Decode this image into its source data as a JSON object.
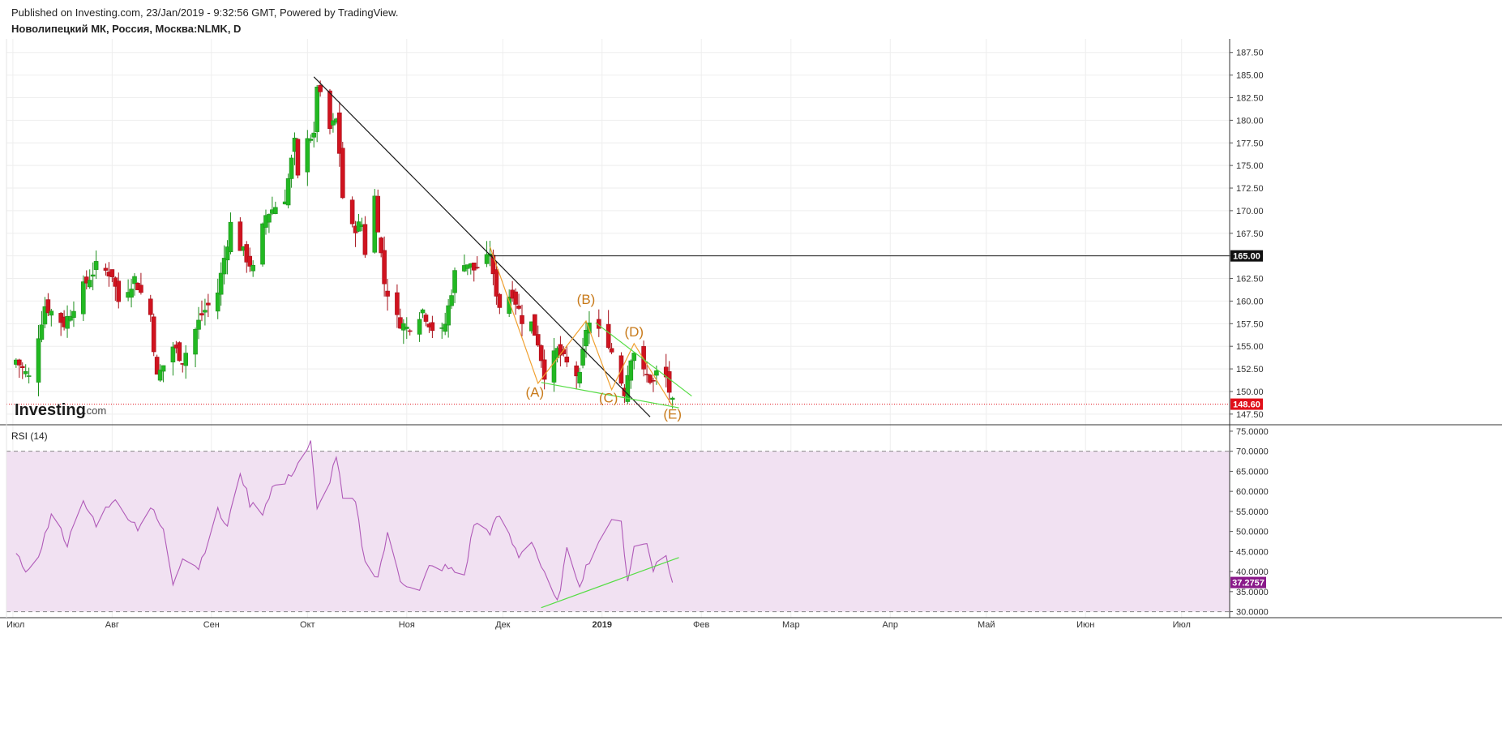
{
  "header": {
    "published": "Published on Investing.com, 23/Jan/2019 - 9:32:56 GMT, Powered by TradingView.",
    "instrument": "Новолипецкий МК, Россия, Москва:NLMK, D"
  },
  "logo": {
    "main": "Investing",
    "domain": ".com"
  },
  "colors": {
    "up": "#22b922",
    "down": "#d0131f",
    "trend": "#1a1a1a",
    "wave": "#f0a030",
    "channel": "#55dd44",
    "rsi_line": "#b05ab8",
    "rsi_band": "#f1e1f2",
    "price_tag": "#e0101a",
    "rsi_tag": "#8a1a8a"
  },
  "chart_data": [
    {
      "type": "candlestick",
      "title": "Новолипецкий МК, Россия, Москва:NLMK, D",
      "x_labels": [
        "Июл",
        "Авг",
        "Сен",
        "Окт",
        "Ноя",
        "Дек",
        "2019",
        "Фев",
        "Мар",
        "Апр",
        "Май",
        "Июн",
        "Июл"
      ],
      "ylim": [
        146.5,
        189
      ],
      "y_ticks": [
        "147.50",
        "150.00",
        "152.50",
        "155.00",
        "157.50",
        "160.00",
        "162.50",
        "165.00",
        "167.50",
        "170.00",
        "172.50",
        "175.00",
        "177.50",
        "180.00",
        "182.50",
        "185.00",
        "187.50"
      ],
      "last_price": "148.60",
      "level": "165.00",
      "close_anchors": [
        {
          "d": "2018-07-02",
          "c": 153.5
        },
        {
          "d": "2018-07-06",
          "c": 151.5
        },
        {
          "d": "2018-07-11",
          "c": 159.5
        },
        {
          "d": "2018-07-17",
          "c": 157.5
        },
        {
          "d": "2018-07-23",
          "c": 161.5
        },
        {
          "d": "2018-07-27",
          "c": 163.8
        },
        {
          "d": "2018-08-01",
          "c": 163.0
        },
        {
          "d": "2018-08-03",
          "c": 160.0
        },
        {
          "d": "2018-08-08",
          "c": 162.5
        },
        {
          "d": "2018-08-13",
          "c": 158.5
        },
        {
          "d": "2018-08-15",
          "c": 151.5
        },
        {
          "d": "2018-08-20",
          "c": 155.0
        },
        {
          "d": "2018-08-23",
          "c": 153.5
        },
        {
          "d": "2018-08-29",
          "c": 158.5
        },
        {
          "d": "2018-09-03",
          "c": 161.0
        },
        {
          "d": "2018-09-07",
          "c": 168.5
        },
        {
          "d": "2018-09-10",
          "c": 166.0
        },
        {
          "d": "2018-09-14",
          "c": 163.5
        },
        {
          "d": "2018-09-18",
          "c": 169.5
        },
        {
          "d": "2018-09-24",
          "c": 171.5
        },
        {
          "d": "2018-09-27",
          "c": 177.5
        },
        {
          "d": "2018-09-28",
          "c": 173.5
        },
        {
          "d": "2018-10-01",
          "c": 178.5
        },
        {
          "d": "2018-10-03",
          "c": 178.0
        },
        {
          "d": "2018-10-04",
          "c": 184.0
        },
        {
          "d": "2018-10-05",
          "c": 182.5
        },
        {
          "d": "2018-10-08",
          "c": 179.0
        },
        {
          "d": "2018-10-10",
          "c": 180.0
        },
        {
          "d": "2018-10-11",
          "c": 176.5
        },
        {
          "d": "2018-10-12",
          "c": 171.5
        },
        {
          "d": "2018-10-15",
          "c": 168.0
        },
        {
          "d": "2018-10-18",
          "c": 168.5
        },
        {
          "d": "2018-10-19",
          "c": 165.5
        },
        {
          "d": "2018-10-22",
          "c": 171.5
        },
        {
          "d": "2018-10-25",
          "c": 162.0
        },
        {
          "d": "2018-10-29",
          "c": 158.0
        },
        {
          "d": "2018-11-01",
          "c": 157.0
        },
        {
          "d": "2018-11-06",
          "c": 159.0
        },
        {
          "d": "2018-11-09",
          "c": 157.0
        },
        {
          "d": "2018-11-12",
          "c": 156.5
        },
        {
          "d": "2018-11-13",
          "c": 157.5
        },
        {
          "d": "2018-11-16",
          "c": 163.0
        },
        {
          "d": "2018-11-19",
          "c": 164.5
        },
        {
          "d": "2018-11-22",
          "c": 163.5
        },
        {
          "d": "2018-11-26",
          "c": 164.5
        },
        {
          "d": "2018-11-27",
          "c": 165.5
        },
        {
          "d": "2018-11-28",
          "c": 162.5
        },
        {
          "d": "2018-11-30",
          "c": 159.5
        },
        {
          "d": "2018-12-04",
          "c": 161.0
        },
        {
          "d": "2018-12-07",
          "c": 158.0
        },
        {
          "d": "2018-12-10",
          "c": 157.5
        },
        {
          "d": "2018-12-12",
          "c": 155.5
        },
        {
          "d": "2018-12-14",
          "c": 152.0
        },
        {
          "d": "2018-12-18",
          "c": 154.5
        },
        {
          "d": "2018-12-21",
          "c": 153.0
        },
        {
          "d": "2018-12-25",
          "c": 151.5
        },
        {
          "d": "2018-12-27",
          "c": 157.0
        },
        {
          "d": "2018-12-28",
          "c": 157.5
        },
        {
          "d": "2019-01-03",
          "c": 155.5
        },
        {
          "d": "2019-01-08",
          "c": 150.0
        },
        {
          "d": "2019-01-10",
          "c": 154.0
        },
        {
          "d": "2019-01-11",
          "c": 154.5
        },
        {
          "d": "2019-01-14",
          "c": 152.0
        },
        {
          "d": "2019-01-17",
          "c": 151.0
        },
        {
          "d": "2019-01-18",
          "c": 152.0
        },
        {
          "d": "2019-01-21",
          "c": 151.5
        },
        {
          "d": "2019-01-23",
          "c": 148.6
        }
      ],
      "wave_labels": [
        {
          "label": "(A)",
          "d": "2018-12-11",
          "y": 149.4
        },
        {
          "label": "(B)",
          "d": "2018-12-27",
          "y": 159.7
        },
        {
          "label": "(C)",
          "d": "2019-01-03",
          "y": 148.8
        },
        {
          "label": "(D)",
          "d": "2019-01-11",
          "y": 156.1
        },
        {
          "label": "(E)",
          "d": "2019-01-23",
          "y": 147.0
        }
      ],
      "trendline": [
        {
          "d": "2018-10-03",
          "y": 184.8
        },
        {
          "d": "2019-01-16",
          "y": 147.2
        }
      ],
      "wave_path": [
        {
          "d": "2018-11-27",
          "y": 166.0
        },
        {
          "d": "2018-12-12",
          "y": 150.9
        },
        {
          "d": "2018-12-27",
          "y": 157.8
        },
        {
          "d": "2019-01-04",
          "y": 150.2
        },
        {
          "d": "2019-01-11",
          "y": 155.3
        },
        {
          "d": "2019-01-23",
          "y": 148.4
        }
      ],
      "channel_upper": [
        {
          "d": "2018-12-30",
          "y": 157.6
        },
        {
          "d": "2019-01-29",
          "y": 149.5
        }
      ],
      "channel_lower": [
        {
          "d": "2018-12-13",
          "y": 151.0
        },
        {
          "d": "2019-01-25",
          "y": 148.2
        }
      ]
    },
    {
      "type": "line",
      "title": "RSI (14)",
      "ylim": [
        28.5,
        76
      ],
      "y_ticks": [
        "30.0000",
        "35.0000",
        "40.0000",
        "45.0000",
        "50.0000",
        "55.0000",
        "60.0000",
        "65.0000",
        "70.0000",
        "75.0000"
      ],
      "band": [
        30,
        70
      ],
      "last_value": "37.2757",
      "anchors": [
        {
          "d": "2018-07-02",
          "v": 43.5
        },
        {
          "d": "2018-07-06",
          "v": 40.0
        },
        {
          "d": "2018-07-10",
          "v": 45.5
        },
        {
          "d": "2018-07-13",
          "v": 55.0
        },
        {
          "d": "2018-07-18",
          "v": 47.0
        },
        {
          "d": "2018-07-23",
          "v": 57.0
        },
        {
          "d": "2018-07-27",
          "v": 52.0
        },
        {
          "d": "2018-08-01",
          "v": 58.0
        },
        {
          "d": "2018-08-06",
          "v": 54.0
        },
        {
          "d": "2018-08-09",
          "v": 51.0
        },
        {
          "d": "2018-08-13",
          "v": 56.0
        },
        {
          "d": "2018-08-17",
          "v": 50.0
        },
        {
          "d": "2018-08-20",
          "v": 37.0
        },
        {
          "d": "2018-08-23",
          "v": 44.0
        },
        {
          "d": "2018-08-28",
          "v": 41.0
        },
        {
          "d": "2018-09-03",
          "v": 55.0
        },
        {
          "d": "2018-09-06",
          "v": 51.0
        },
        {
          "d": "2018-09-10",
          "v": 65.0
        },
        {
          "d": "2018-09-13",
          "v": 57.0
        },
        {
          "d": "2018-09-17",
          "v": 55.0
        },
        {
          "d": "2018-09-20",
          "v": 61.0
        },
        {
          "d": "2018-09-24",
          "v": 62.0
        },
        {
          "d": "2018-09-28",
          "v": 67.0
        },
        {
          "d": "2018-10-02",
          "v": 72.0
        },
        {
          "d": "2018-10-04",
          "v": 55.0
        },
        {
          "d": "2018-10-08",
          "v": 63.0
        },
        {
          "d": "2018-10-10",
          "v": 69.0
        },
        {
          "d": "2018-10-12",
          "v": 58.0
        },
        {
          "d": "2018-10-16",
          "v": 57.0
        },
        {
          "d": "2018-10-19",
          "v": 42.0
        },
        {
          "d": "2018-10-23",
          "v": 39.0
        },
        {
          "d": "2018-10-26",
          "v": 49.0
        },
        {
          "d": "2018-10-30",
          "v": 38.0
        },
        {
          "d": "2018-11-05",
          "v": 35.0
        },
        {
          "d": "2018-11-08",
          "v": 41.0
        },
        {
          "d": "2018-11-13",
          "v": 41.0
        },
        {
          "d": "2018-11-19",
          "v": 39.0
        },
        {
          "d": "2018-11-22",
          "v": 52.0
        },
        {
          "d": "2018-11-27",
          "v": 50.0
        },
        {
          "d": "2018-11-30",
          "v": 54.0
        },
        {
          "d": "2018-12-04",
          "v": 47.0
        },
        {
          "d": "2018-12-06",
          "v": 44.0
        },
        {
          "d": "2018-12-10",
          "v": 48.0
        },
        {
          "d": "2018-12-14",
          "v": 39.0
        },
        {
          "d": "2018-12-18",
          "v": 32.0
        },
        {
          "d": "2018-12-21",
          "v": 45.0
        },
        {
          "d": "2018-12-25",
          "v": 37.0
        },
        {
          "d": "2018-12-28",
          "v": 43.0
        },
        {
          "d": "2019-01-03",
          "v": 52.0
        },
        {
          "d": "2019-01-07",
          "v": 52.0
        },
        {
          "d": "2019-01-09",
          "v": 38.0
        },
        {
          "d": "2019-01-11",
          "v": 46.0
        },
        {
          "d": "2019-01-15",
          "v": 47.0
        },
        {
          "d": "2019-01-17",
          "v": 41.0
        },
        {
          "d": "2019-01-21",
          "v": 44.0
        },
        {
          "d": "2019-01-23",
          "v": 37.2757
        }
      ],
      "trendline": [
        {
          "d": "2018-12-13",
          "y": 31.0
        },
        {
          "d": "2019-01-25",
          "y": 43.5
        }
      ]
    }
  ]
}
